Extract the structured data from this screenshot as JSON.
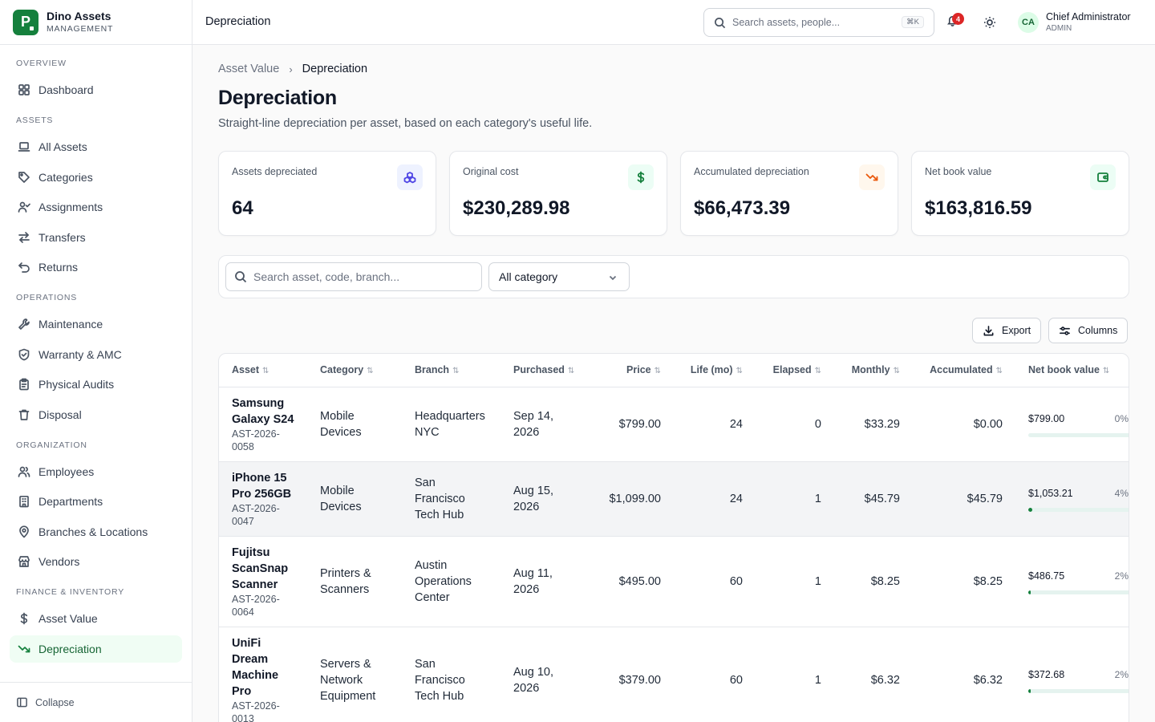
{
  "brand": {
    "name": "Dino Assets",
    "sub": "MANAGEMENT",
    "logo": "P"
  },
  "nav": {
    "sections": [
      {
        "label": "OVERVIEW",
        "items": [
          {
            "label": "Dashboard",
            "icon": "grid-icon"
          }
        ]
      },
      {
        "label": "ASSETS",
        "items": [
          {
            "label": "All Assets",
            "icon": "laptop-icon"
          },
          {
            "label": "Categories",
            "icon": "tag-icon"
          },
          {
            "label": "Assignments",
            "icon": "user-check-icon"
          },
          {
            "label": "Transfers",
            "icon": "arrows-icon"
          },
          {
            "label": "Returns",
            "icon": "undo-icon"
          }
        ]
      },
      {
        "label": "OPERATIONS",
        "items": [
          {
            "label": "Maintenance",
            "icon": "wrench-icon"
          },
          {
            "label": "Warranty & AMC",
            "icon": "shield-icon"
          },
          {
            "label": "Physical Audits",
            "icon": "clipboard-icon"
          },
          {
            "label": "Disposal",
            "icon": "trash-icon"
          }
        ]
      },
      {
        "label": "ORGANIZATION",
        "items": [
          {
            "label": "Employees",
            "icon": "users-icon"
          },
          {
            "label": "Departments",
            "icon": "building-icon"
          },
          {
            "label": "Branches & Locations",
            "icon": "map-pin-icon"
          },
          {
            "label": "Vendors",
            "icon": "store-icon"
          }
        ]
      },
      {
        "label": "FINANCE & INVENTORY",
        "items": [
          {
            "label": "Asset Value",
            "icon": "dollar-icon"
          },
          {
            "label": "Depreciation",
            "icon": "trending-down-icon",
            "active": true
          }
        ]
      }
    ],
    "collapse_label": "Collapse"
  },
  "header": {
    "title": "Depreciation",
    "search_placeholder": "Search assets, people...",
    "search_kbd": "⌘K",
    "notifications": "4",
    "user_initials": "CA",
    "user_name": "Chief Administrator",
    "user_role": "ADMIN"
  },
  "page": {
    "breadcrumb_parent": "Asset Value",
    "breadcrumb_current": "Depreciation",
    "title": "Depreciation",
    "subtitle": "Straight-line depreciation per asset, based on each category's useful life."
  },
  "stats": [
    {
      "label": "Assets depreciated",
      "value": "64",
      "icon": "boxes-icon",
      "bg": "#eef2ff",
      "color": "#4f46e5"
    },
    {
      "label": "Original cost",
      "value": "$230,289.98",
      "icon": "dollar-icon",
      "bg": "#ecfdf5",
      "color": "#15803d"
    },
    {
      "label": "Accumulated depreciation",
      "value": "$66,473.39",
      "icon": "trending-down-icon",
      "bg": "#fff7ed",
      "color": "#ea580c"
    },
    {
      "label": "Net book value",
      "value": "$163,816.59",
      "icon": "wallet-icon",
      "bg": "#ecfdf5",
      "color": "#15803d"
    }
  ],
  "filters": {
    "search_placeholder": "Search asset, code, branch...",
    "category_value": "All category"
  },
  "actions": {
    "export_label": "Export",
    "columns_label": "Columns"
  },
  "table": {
    "columns": [
      "Asset",
      "Category",
      "Branch",
      "Purchased",
      "Price",
      "Life (mo)",
      "Elapsed",
      "Monthly",
      "Accumulated",
      "Net book value"
    ],
    "rows": [
      {
        "name": "Samsung Galaxy S24",
        "code": "AST-2026-0058",
        "category": "Mobile Devices",
        "branch": "Headquarters NYC",
        "purchased": "Sep 14, 2026",
        "price": "$799.00",
        "life": "24",
        "elapsed": "0",
        "monthly": "$33.29",
        "accumulated": "$0.00",
        "nbv": "$799.00",
        "pct": "0%",
        "pct_value": 0
      },
      {
        "name": "iPhone 15 Pro 256GB",
        "code": "AST-2026-0047",
        "category": "Mobile Devices",
        "branch": "San Francisco Tech Hub",
        "purchased": "Aug 15, 2026",
        "price": "$1,099.00",
        "life": "24",
        "elapsed": "1",
        "monthly": "$45.79",
        "accumulated": "$45.79",
        "nbv": "$1,053.21",
        "pct": "4%",
        "pct_value": 4,
        "highlight": true
      },
      {
        "name": "Fujitsu ScanSnap Scanner",
        "code": "AST-2026-0064",
        "category": "Printers & Scanners",
        "branch": "Austin Operations Center",
        "purchased": "Aug 11, 2026",
        "price": "$495.00",
        "life": "60",
        "elapsed": "1",
        "monthly": "$8.25",
        "accumulated": "$8.25",
        "nbv": "$486.75",
        "pct": "2%",
        "pct_value": 2
      },
      {
        "name": "UniFi Dream Machine Pro",
        "code": "AST-2026-0013",
        "category": "Servers & Network Equipment",
        "branch": "San Francisco Tech Hub",
        "purchased": "Aug 10, 2026",
        "price": "$379.00",
        "life": "60",
        "elapsed": "1",
        "monthly": "$6.32",
        "accumulated": "$6.32",
        "nbv": "$372.68",
        "pct": "2%",
        "pct_value": 2
      }
    ]
  }
}
